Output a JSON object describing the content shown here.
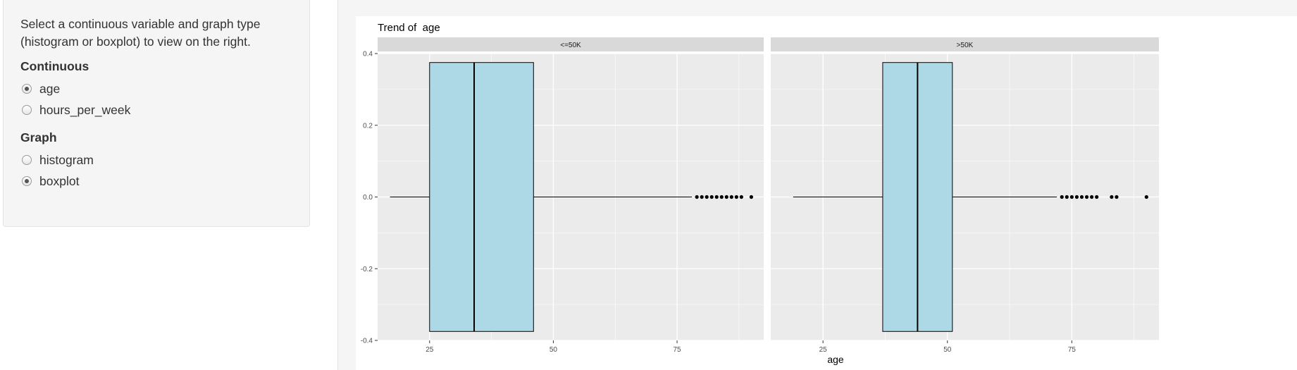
{
  "sidebar": {
    "help_text": "Select a continuous variable and graph type (histogram or boxplot) to view on the right.",
    "continuous": {
      "label": "Continuous",
      "options": [
        {
          "label": "age",
          "checked": true
        },
        {
          "label": "hours_per_week",
          "checked": false
        }
      ]
    },
    "graph": {
      "label": "Graph",
      "options": [
        {
          "label": "histogram",
          "checked": false
        },
        {
          "label": "boxplot",
          "checked": true
        }
      ]
    }
  },
  "chart_data": {
    "type": "boxplot",
    "title": "Trend of  age",
    "xlabel": "age",
    "ylabel": "",
    "xlim": [
      14.5,
      92.5
    ],
    "ylim": [
      -0.4,
      0.4
    ],
    "x_ticks": [
      25,
      50,
      75
    ],
    "x_tick_labels": [
      "25",
      "50",
      "75"
    ],
    "y_ticks": [
      0.4,
      0.2,
      0.0,
      -0.2,
      -0.4
    ],
    "y_tick_labels": [
      "0.4",
      "0.2",
      "0.0",
      "-0.2",
      "-0.4"
    ],
    "box_half_height": 0.375,
    "facets": [
      {
        "label": "<=50K",
        "whisker_low": 17,
        "q1": 25,
        "median": 34,
        "q3": 46,
        "whisker_high": 78,
        "outliers": [
          79,
          80,
          81,
          82,
          83,
          84,
          85,
          86,
          87,
          88,
          90
        ]
      },
      {
        "label": ">50K",
        "whisker_low": 19,
        "q1": 37,
        "median": 44,
        "q3": 51,
        "whisker_high": 72,
        "outliers": [
          73,
          74,
          75,
          76,
          77,
          78,
          79,
          80,
          83,
          84,
          90
        ]
      }
    ],
    "colors": {
      "box_fill": "#add8e6",
      "panel_bg": "#ebebeb",
      "strip_bg": "#d9d9d9",
      "grid": "#ffffff",
      "ink": "#000000"
    }
  }
}
